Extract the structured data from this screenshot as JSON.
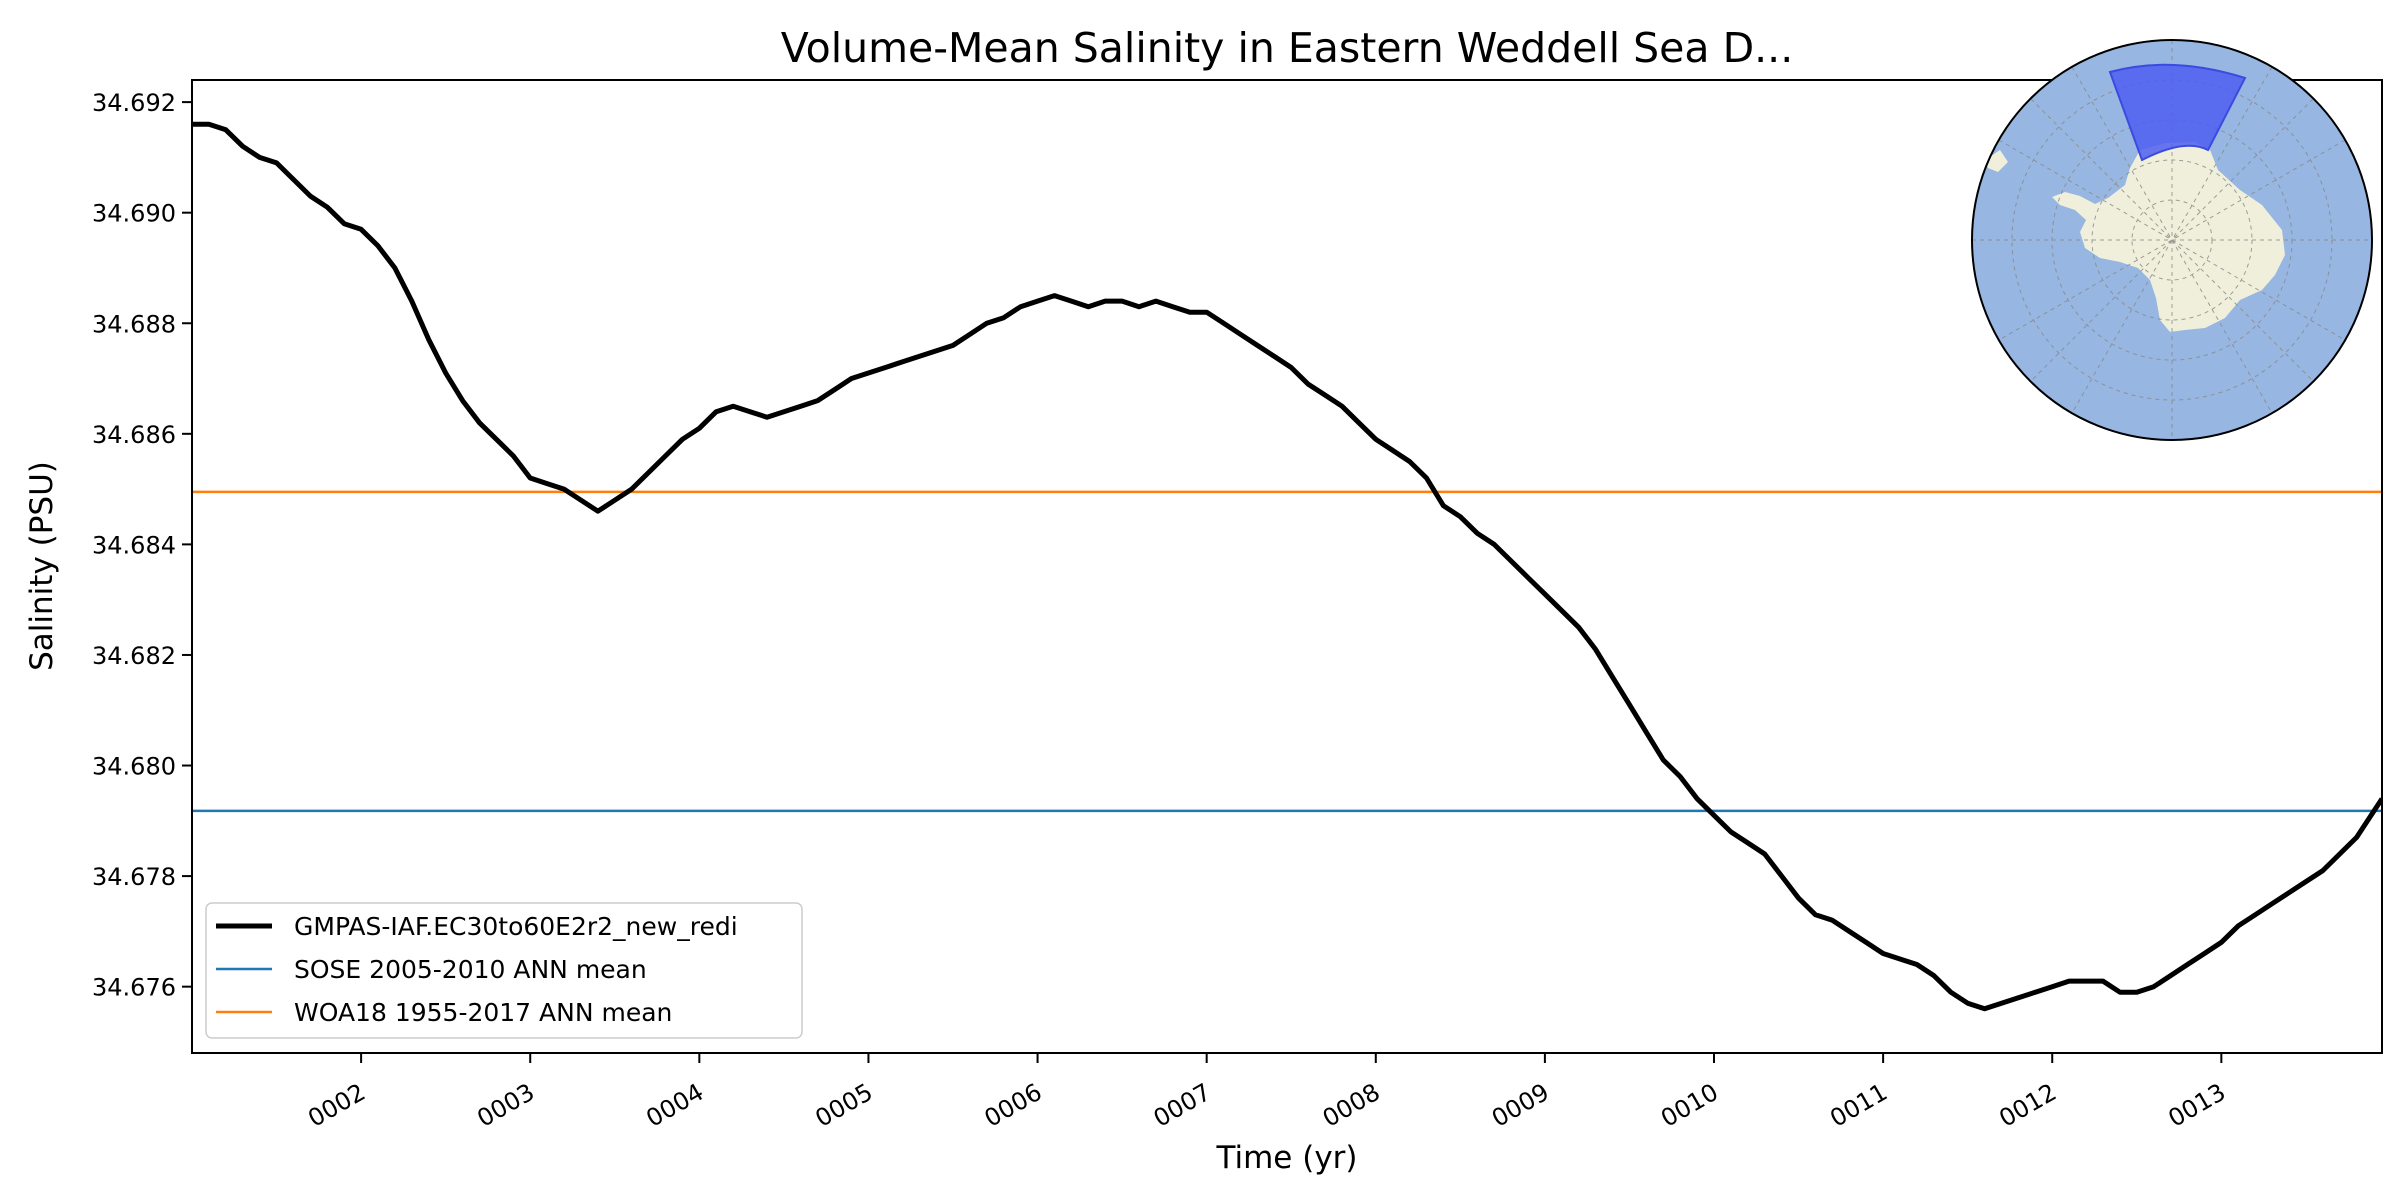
{
  "chart_data": {
    "type": "line",
    "title": "Volume-Mean Salinity in Eastern Weddell Sea D...",
    "xlabel": "Time (yr)",
    "ylabel": "Salinity (PSU)",
    "xlim": [
      1.0,
      13.95
    ],
    "ylim": [
      34.6748,
      34.6924
    ],
    "grid": false,
    "legend_position": "lower-left",
    "x_ticks": [
      {
        "value": 2,
        "label": "0002"
      },
      {
        "value": 3,
        "label": "0003"
      },
      {
        "value": 4,
        "label": "0004"
      },
      {
        "value": 5,
        "label": "0005"
      },
      {
        "value": 6,
        "label": "0006"
      },
      {
        "value": 7,
        "label": "0007"
      },
      {
        "value": 8,
        "label": "0008"
      },
      {
        "value": 9,
        "label": "0009"
      },
      {
        "value": 10,
        "label": "0010"
      },
      {
        "value": 11,
        "label": "0011"
      },
      {
        "value": 12,
        "label": "0012"
      },
      {
        "value": 13,
        "label": "0013"
      }
    ],
    "y_ticks": [
      {
        "value": 34.676,
        "label": "34.676"
      },
      {
        "value": 34.678,
        "label": "34.678"
      },
      {
        "value": 34.68,
        "label": "34.680"
      },
      {
        "value": 34.682,
        "label": "34.682"
      },
      {
        "value": 34.684,
        "label": "34.684"
      },
      {
        "value": 34.686,
        "label": "34.686"
      },
      {
        "value": 34.688,
        "label": "34.688"
      },
      {
        "value": 34.69,
        "label": "34.690"
      },
      {
        "value": 34.692,
        "label": "34.692"
      }
    ],
    "series": [
      {
        "name": "GMPAS-IAF.EC30to60E2r2_new_redi",
        "color": "#000000",
        "kind": "line",
        "x": [
          1.0,
          1.1,
          1.2,
          1.3,
          1.4,
          1.5,
          1.6,
          1.7,
          1.8,
          1.9,
          2.0,
          2.1,
          2.2,
          2.3,
          2.4,
          2.5,
          2.6,
          2.7,
          2.8,
          2.9,
          3.0,
          3.1,
          3.2,
          3.3,
          3.4,
          3.5,
          3.6,
          3.7,
          3.8,
          3.9,
          4.0,
          4.1,
          4.2,
          4.3,
          4.4,
          4.5,
          4.6,
          4.7,
          4.8,
          4.9,
          5.0,
          5.1,
          5.2,
          5.3,
          5.4,
          5.5,
          5.6,
          5.7,
          5.8,
          5.9,
          6.0,
          6.1,
          6.2,
          6.3,
          6.4,
          6.5,
          6.6,
          6.7,
          6.8,
          6.9,
          7.0,
          7.1,
          7.2,
          7.3,
          7.4,
          7.5,
          7.6,
          7.7,
          7.8,
          7.9,
          8.0,
          8.1,
          8.2,
          8.3,
          8.4,
          8.5,
          8.6,
          8.7,
          8.8,
          8.9,
          9.0,
          9.1,
          9.2,
          9.3,
          9.4,
          9.5,
          9.6,
          9.7,
          9.8,
          9.9,
          10.0,
          10.1,
          10.2,
          10.3,
          10.4,
          10.5,
          10.6,
          10.7,
          10.8,
          10.9,
          11.0,
          11.1,
          11.2,
          11.3,
          11.4,
          11.5,
          11.6,
          11.7,
          11.8,
          11.9,
          12.0,
          12.1,
          12.2,
          12.3,
          12.4,
          12.5,
          12.6,
          12.7,
          12.8,
          12.9,
          13.0,
          13.1,
          13.2,
          13.3,
          13.4,
          13.5,
          13.6,
          13.7,
          13.8,
          13.95
        ],
        "values": [
          34.6916,
          34.6916,
          34.6915,
          34.6912,
          34.691,
          34.6909,
          34.6906,
          34.6903,
          34.6901,
          34.6898,
          34.6897,
          34.6894,
          34.689,
          34.6884,
          34.6877,
          34.6871,
          34.6866,
          34.6862,
          34.6859,
          34.6856,
          34.6852,
          34.6851,
          34.685,
          34.6848,
          34.6846,
          34.6848,
          34.685,
          34.6853,
          34.6856,
          34.6859,
          34.6861,
          34.6864,
          34.6865,
          34.6864,
          34.6863,
          34.6864,
          34.6865,
          34.6866,
          34.6868,
          34.687,
          34.6871,
          34.6872,
          34.6873,
          34.6874,
          34.6875,
          34.6876,
          34.6878,
          34.688,
          34.6881,
          34.6883,
          34.6884,
          34.6885,
          34.6884,
          34.6883,
          34.6884,
          34.6884,
          34.6883,
          34.6884,
          34.6883,
          34.6882,
          34.6882,
          34.688,
          34.6878,
          34.6876,
          34.6874,
          34.6872,
          34.6869,
          34.6867,
          34.6865,
          34.6862,
          34.6859,
          34.6857,
          34.6855,
          34.6852,
          34.6847,
          34.6845,
          34.6842,
          34.684,
          34.6837,
          34.6834,
          34.6831,
          34.6828,
          34.6825,
          34.6821,
          34.6816,
          34.6811,
          34.6806,
          34.6801,
          34.6798,
          34.6794,
          34.6791,
          34.6788,
          34.6786,
          34.6784,
          34.678,
          34.6776,
          34.6773,
          34.6772,
          34.677,
          34.6768,
          34.6766,
          34.6765,
          34.6764,
          34.6762,
          34.6759,
          34.6757,
          34.6756,
          34.6757,
          34.6758,
          34.6759,
          34.676,
          34.6761,
          34.6761,
          34.6761,
          34.6759,
          34.6759,
          34.676,
          34.6762,
          34.6764,
          34.6766,
          34.6768,
          34.6771,
          34.6773,
          34.6775,
          34.6777,
          34.6779,
          34.6781,
          34.6784,
          34.6787,
          34.6794
        ]
      },
      {
        "name": "SOSE 2005-2010 ANN mean",
        "color": "#1f77b4",
        "kind": "hline",
        "value": 34.67918
      },
      {
        "name": "WOA18 1955-2017 ANN mean",
        "color": "#ff7f0e",
        "kind": "hline",
        "value": 34.68495
      }
    ],
    "inset_map": {
      "projection": "south-polar-stereographic",
      "ocean_color": "#97b6e1",
      "land_color": "#efefdb",
      "region_color": "#4e5ef0",
      "gridlines": "dashed-grey"
    }
  }
}
